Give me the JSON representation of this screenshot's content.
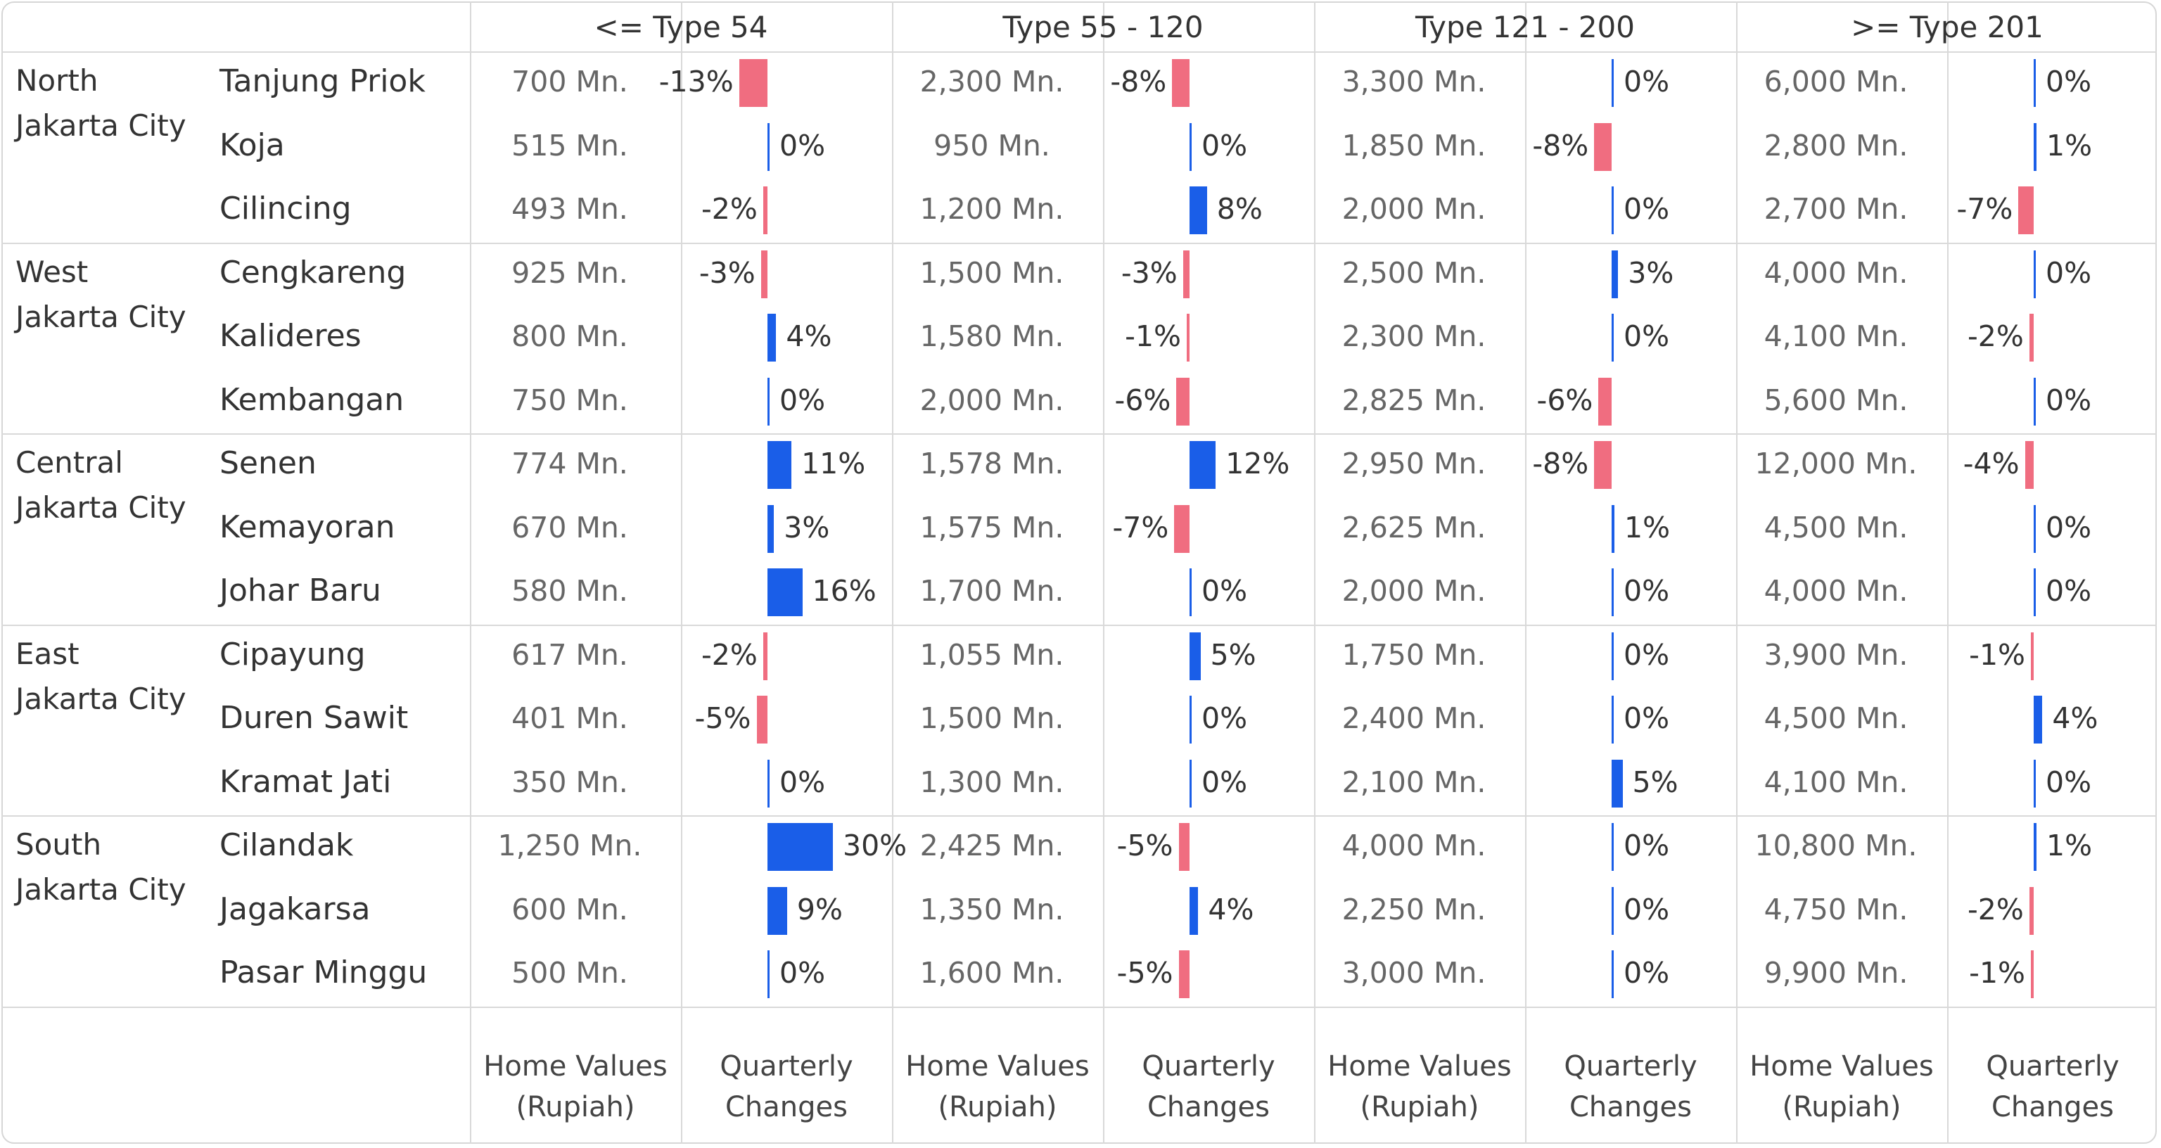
{
  "chart_data": {
    "type": "table",
    "column_groups": [
      "<= Type 54",
      "Type 55 - 120",
      "Type 121 - 200",
      ">= Type 201"
    ],
    "measures": [
      "Home Values\n(Rupiah)",
      "Quarterly\nChanges"
    ],
    "regions": [
      {
        "name": "North\nJakarta City",
        "districts": [
          {
            "name": "Tanjung Priok",
            "values": [
              "700 Mn.",
              "2,300 Mn.",
              "3,300 Mn.",
              "6,000 Mn."
            ],
            "changes": [
              -13,
              -8,
              0,
              0
            ]
          },
          {
            "name": "Koja",
            "values": [
              "515 Mn.",
              "950 Mn.",
              "1,850 Mn.",
              "2,800 Mn."
            ],
            "changes": [
              0,
              0,
              -8,
              1
            ]
          },
          {
            "name": "Cilincing",
            "values": [
              "493 Mn.",
              "1,200 Mn.",
              "2,000 Mn.",
              "2,700 Mn."
            ],
            "changes": [
              -2,
              8,
              0,
              -7
            ]
          }
        ]
      },
      {
        "name": "West\nJakarta City",
        "districts": [
          {
            "name": "Cengkareng",
            "values": [
              "925 Mn.",
              "1,500 Mn.",
              "2,500 Mn.",
              "4,000 Mn."
            ],
            "changes": [
              -3,
              -3,
              3,
              0
            ]
          },
          {
            "name": "Kalideres",
            "values": [
              "800 Mn.",
              "1,580 Mn.",
              "2,300 Mn.",
              "4,100 Mn."
            ],
            "changes": [
              4,
              -1,
              0,
              -2
            ]
          },
          {
            "name": "Kembangan",
            "values": [
              "750 Mn.",
              "2,000 Mn.",
              "2,825 Mn.",
              "5,600 Mn."
            ],
            "changes": [
              0,
              -6,
              -6,
              0
            ]
          }
        ]
      },
      {
        "name": "Central\nJakarta City",
        "districts": [
          {
            "name": "Senen",
            "values": [
              "774 Mn.",
              "1,578 Mn.",
              "2,950 Mn.",
              "12,000 Mn."
            ],
            "changes": [
              11,
              12,
              -8,
              -4
            ]
          },
          {
            "name": "Kemayoran",
            "values": [
              "670 Mn.",
              "1,575 Mn.",
              "2,625 Mn.",
              "4,500 Mn."
            ],
            "changes": [
              3,
              -7,
              1,
              0
            ]
          },
          {
            "name": "Johar Baru",
            "values": [
              "580 Mn.",
              "1,700 Mn.",
              "2,000 Mn.",
              "4,000 Mn."
            ],
            "changes": [
              16,
              0,
              0,
              0
            ]
          }
        ]
      },
      {
        "name": "East\nJakarta City",
        "districts": [
          {
            "name": "Cipayung",
            "values": [
              "617 Mn.",
              "1,055 Mn.",
              "1,750 Mn.",
              "3,900 Mn."
            ],
            "changes": [
              -2,
              5,
              0,
              -1
            ]
          },
          {
            "name": "Duren Sawit",
            "values": [
              "401 Mn.",
              "1,500 Mn.",
              "2,400 Mn.",
              "4,500 Mn."
            ],
            "changes": [
              -5,
              0,
              0,
              4
            ]
          },
          {
            "name": "Kramat Jati",
            "values": [
              "350 Mn.",
              "1,300 Mn.",
              "2,100 Mn.",
              "4,100 Mn."
            ],
            "changes": [
              0,
              0,
              5,
              0
            ]
          }
        ]
      },
      {
        "name": "South\nJakarta City",
        "districts": [
          {
            "name": "Cilandak",
            "values": [
              "1,250 Mn.",
              "2,425 Mn.",
              "4,000 Mn.",
              "10,800 Mn."
            ],
            "changes": [
              30,
              -5,
              0,
              1
            ]
          },
          {
            "name": "Jagakarsa",
            "values": [
              "600 Mn.",
              "1,350 Mn.",
              "2,250 Mn.",
              "4,750 Mn."
            ],
            "changes": [
              9,
              4,
              0,
              -2
            ]
          },
          {
            "name": "Pasar Minggu",
            "values": [
              "500 Mn.",
              "1,600 Mn.",
              "3,000 Mn.",
              "9,900 Mn."
            ],
            "changes": [
              0,
              -5,
              0,
              -1
            ]
          }
        ]
      }
    ],
    "colors": {
      "positive": "#1a5ee8",
      "negative": "#f06d80"
    }
  }
}
